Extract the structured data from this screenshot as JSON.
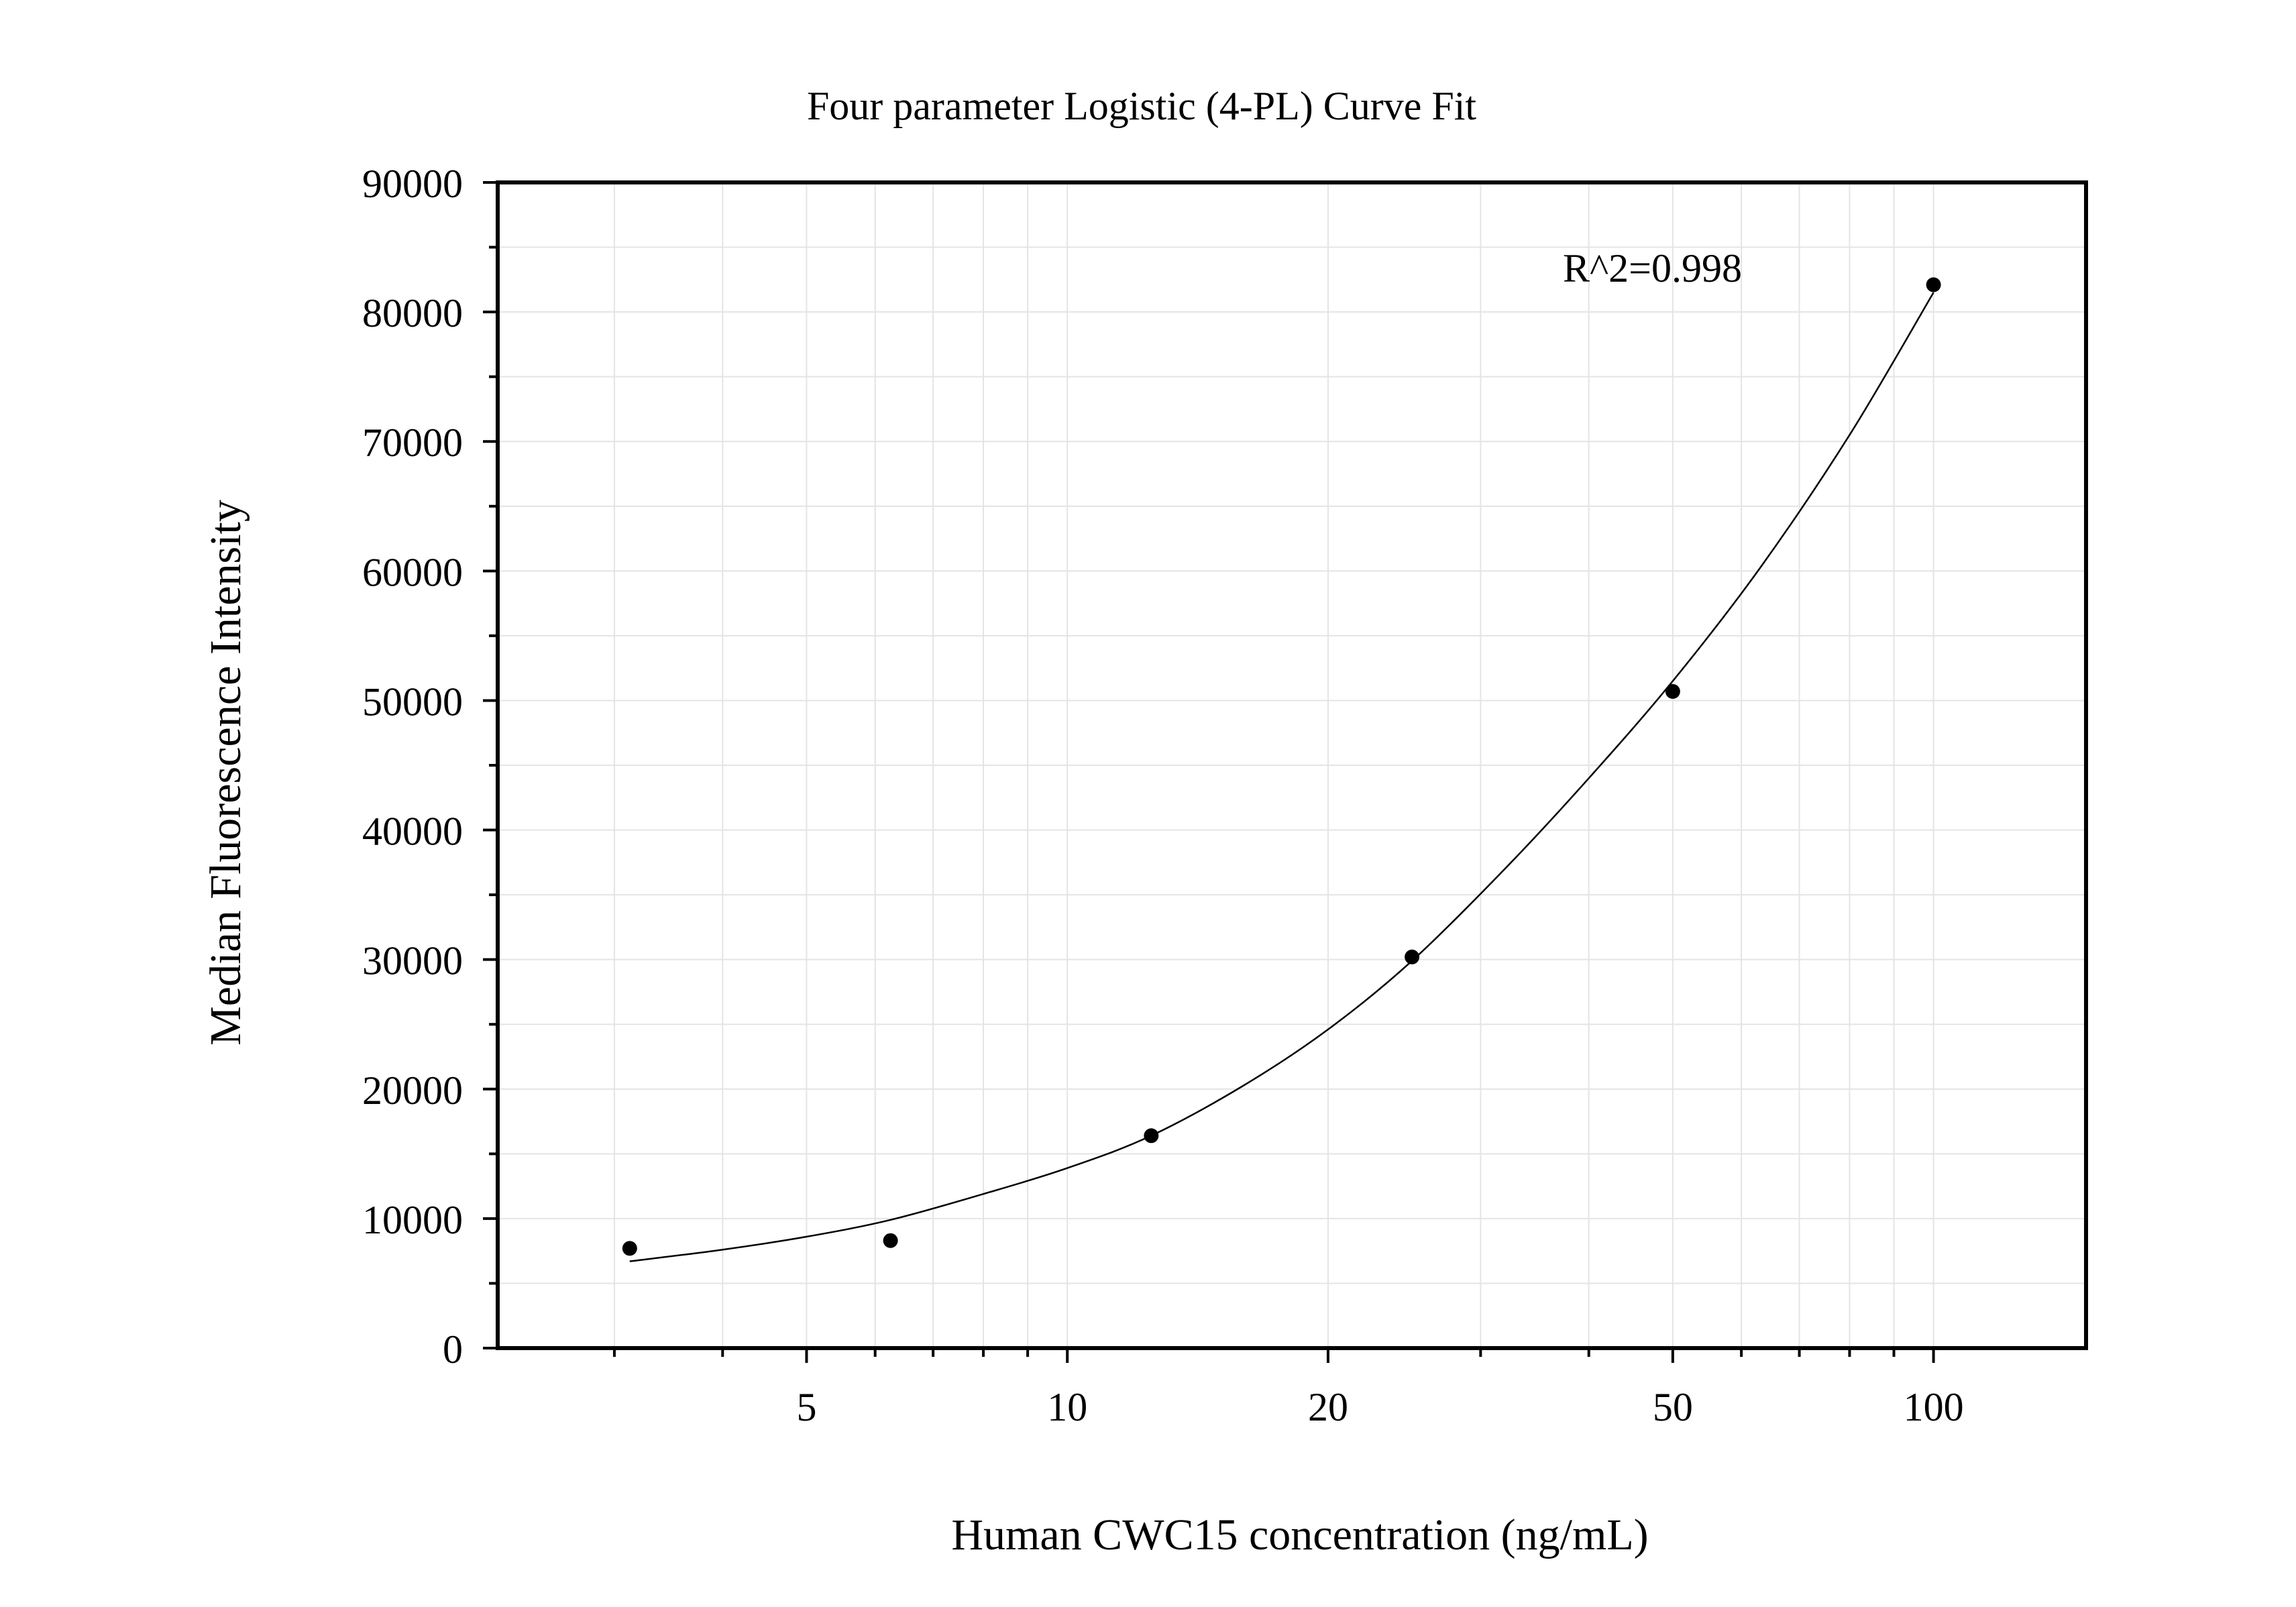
{
  "chart_data": {
    "type": "scatter",
    "title": "Four parameter Logistic (4-PL) Curve Fit",
    "xlabel": "Human CWC15 concentration (ng/mL)",
    "ylabel": "Median Fluorescence Intensity",
    "x_scale": "log",
    "xlim": [
      2.2,
      150
    ],
    "ylim": [
      0,
      90000
    ],
    "x_ticks": [
      5,
      10,
      20,
      50,
      100
    ],
    "x_tick_labels": [
      "5",
      "10",
      "20",
      "50",
      "100"
    ],
    "y_ticks": [
      0,
      10000,
      20000,
      30000,
      40000,
      50000,
      60000,
      70000,
      80000,
      90000
    ],
    "y_tick_labels": [
      "0",
      "10000",
      "20000",
      "30000",
      "40000",
      "50000",
      "60000",
      "70000",
      "80000",
      "90000"
    ],
    "grid": true,
    "annotation": "R^2=0.998",
    "points": [
      {
        "x": 3.125,
        "y": 7700
      },
      {
        "x": 6.25,
        "y": 8300
      },
      {
        "x": 12.5,
        "y": 16400
      },
      {
        "x": 25,
        "y": 30200
      },
      {
        "x": 50,
        "y": 50700
      },
      {
        "x": 100,
        "y": 82100
      }
    ],
    "fit_curve": [
      {
        "x": 3.125,
        "y": 6700
      },
      {
        "x": 4,
        "y": 7600
      },
      {
        "x": 5,
        "y": 8600
      },
      {
        "x": 6.25,
        "y": 9900
      },
      {
        "x": 8,
        "y": 11900
      },
      {
        "x": 10,
        "y": 13900
      },
      {
        "x": 12.5,
        "y": 16400
      },
      {
        "x": 16,
        "y": 20300
      },
      {
        "x": 20,
        "y": 24600
      },
      {
        "x": 25,
        "y": 29900
      },
      {
        "x": 32,
        "y": 37000
      },
      {
        "x": 40,
        "y": 44000
      },
      {
        "x": 50,
        "y": 51500
      },
      {
        "x": 63,
        "y": 60200
      },
      {
        "x": 80,
        "y": 70500
      },
      {
        "x": 100,
        "y": 81500
      }
    ]
  }
}
